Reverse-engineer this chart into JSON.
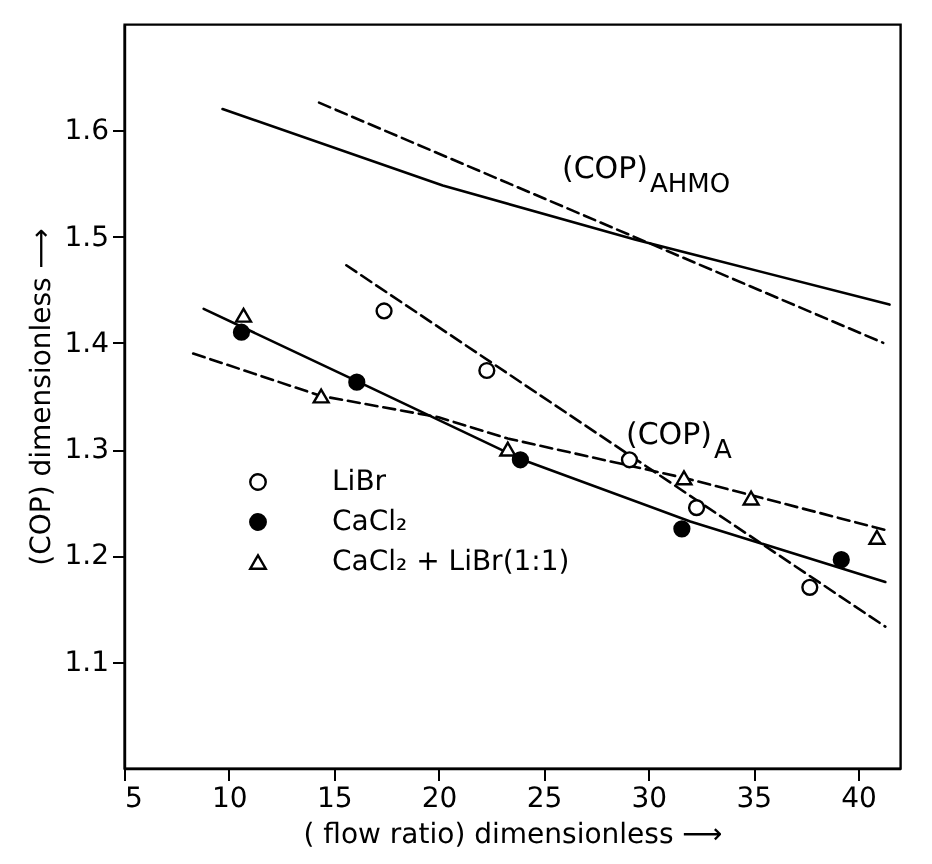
{
  "chart_data": {
    "type": "scatter",
    "xlabel": "( flow ratio) dimensionless ⟶",
    "ylabel": "(COP) dimensionless ⟶",
    "xlim": [
      5,
      42
    ],
    "ylim": [
      1.0,
      1.7
    ],
    "xticks": [
      5,
      10,
      15,
      20,
      25,
      30,
      35,
      40
    ],
    "yticks": [
      1.1,
      1.2,
      1.3,
      1.4,
      1.5,
      1.6
    ],
    "grid": false,
    "legend": "bottom left",
    "annotations": [
      "(COP)$_{AHMO}$",
      "(COP)$_{A}$"
    ],
    "series": [
      {
        "name": "LiBr",
        "marker": "circle",
        "color": "#ffffff",
        "x": [
          17.4,
          22.3,
          29.1,
          32.3,
          37.7
        ],
        "values": [
          1.43,
          1.374,
          1.29,
          1.245,
          1.17
        ]
      },
      {
        "name": "CaCl₂",
        "marker": "circle",
        "color": "#000000",
        "x": [
          10.6,
          16.1,
          23.9,
          31.6,
          39.2
        ],
        "values": [
          1.41,
          1.363,
          1.29,
          1.225,
          1.196
        ]
      },
      {
        "name": "CaCl₂ + LiBr(1:1)",
        "marker": "triangle",
        "color": "#ffffff",
        "x": [
          10.7,
          14.4,
          23.3,
          31.7,
          34.9,
          40.9
        ],
        "values": [
          1.426,
          1.35,
          1.3,
          1.273,
          1.254,
          1.217
        ]
      },
      {
        "type": "line",
        "line_style": "dashed",
        "color": "#000000",
        "x": [
          15.6,
          41.3
        ],
        "values": [
          1.473,
          1.133
        ]
      },
      {
        "type": "line",
        "line_style": "solid",
        "color": "#000000",
        "x": [
          8.8,
          16,
          24,
          32,
          41.3
        ],
        "values": [
          1.432,
          1.365,
          1.29,
          1.232,
          1.175
        ]
      },
      {
        "type": "line",
        "line_style": "dashed",
        "color": "#000000",
        "x": [
          8.3,
          14.4,
          20,
          23.3,
          31.7,
          41.3
        ],
        "values": [
          1.39,
          1.35,
          1.33,
          1.31,
          1.273,
          1.224
        ]
      },
      {
        "type": "line",
        "line_style": "solid",
        "color": "#000000",
        "x": [
          9.7,
          20.2,
          29.4,
          41.5
        ],
        "values": [
          1.62,
          1.548,
          1.497,
          1.436
        ]
      },
      {
        "type": "line",
        "line_style": "dashed",
        "color": "#000000",
        "x": [
          14.3,
          41.2
        ],
        "values": [
          1.626,
          1.4
        ]
      }
    ]
  }
}
